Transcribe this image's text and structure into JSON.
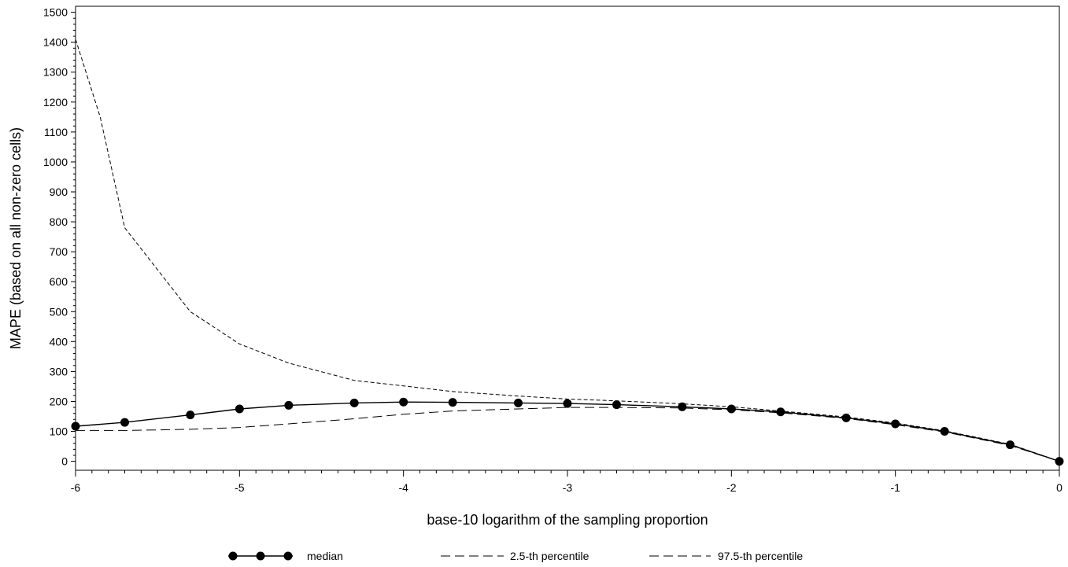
{
  "chart_data": {
    "type": "line",
    "xlabel": "base-10 logarithm of the sampling proportion",
    "ylabel": "MAPE (based on all non-zero cells)",
    "xlim": [
      -6,
      0
    ],
    "ylim": [
      -30,
      1520
    ],
    "x_ticks": [
      -6,
      -5,
      -4,
      -3,
      -2,
      -1,
      0
    ],
    "y_ticks": [
      0,
      100,
      200,
      300,
      400,
      500,
      600,
      700,
      800,
      900,
      1000,
      1100,
      1200,
      1300,
      1400,
      1500
    ],
    "grid": false,
    "legend_position": "bottom",
    "series": [
      {
        "name": "median",
        "style": "solid-with-markers",
        "x": [
          -6,
          -5.7,
          -5.3,
          -5,
          -4.7,
          -4.3,
          -4,
          -3.7,
          -3.3,
          -3,
          -2.7,
          -2.3,
          -2,
          -1.7,
          -1.3,
          -1,
          -0.7,
          -0.3,
          0
        ],
        "y": [
          117,
          130,
          155,
          175,
          187,
          195,
          198,
          197,
          195,
          193,
          189,
          182,
          175,
          165,
          145,
          125,
          100,
          55,
          0
        ]
      },
      {
        "name": "2.5-th percentile",
        "style": "long-dash",
        "x": [
          -6,
          -5.7,
          -5.3,
          -5,
          -4.7,
          -4.3,
          -4,
          -3.7,
          -3.3,
          -3,
          -2.7,
          -2.3,
          -2,
          -1.7,
          -1.3,
          -1,
          -0.7,
          -0.3,
          0
        ],
        "y": [
          103,
          103,
          107,
          113,
          125,
          142,
          157,
          168,
          175,
          180,
          180,
          178,
          172,
          162,
          143,
          122,
          98,
          53,
          0
        ]
      },
      {
        "name": "97.5-th percentile",
        "style": "short-dash",
        "x": [
          -6,
          -5.85,
          -5.7,
          -5.5,
          -5.3,
          -5,
          -4.7,
          -4.3,
          -4,
          -3.7,
          -3.3,
          -3,
          -2.7,
          -2.3,
          -2,
          -1.7,
          -1.3,
          -1,
          -0.7,
          -0.3,
          0
        ],
        "y": [
          1410,
          1150,
          780,
          640,
          500,
          392,
          328,
          270,
          252,
          233,
          218,
          208,
          202,
          192,
          182,
          168,
          148,
          128,
          102,
          57,
          0
        ]
      }
    ]
  }
}
